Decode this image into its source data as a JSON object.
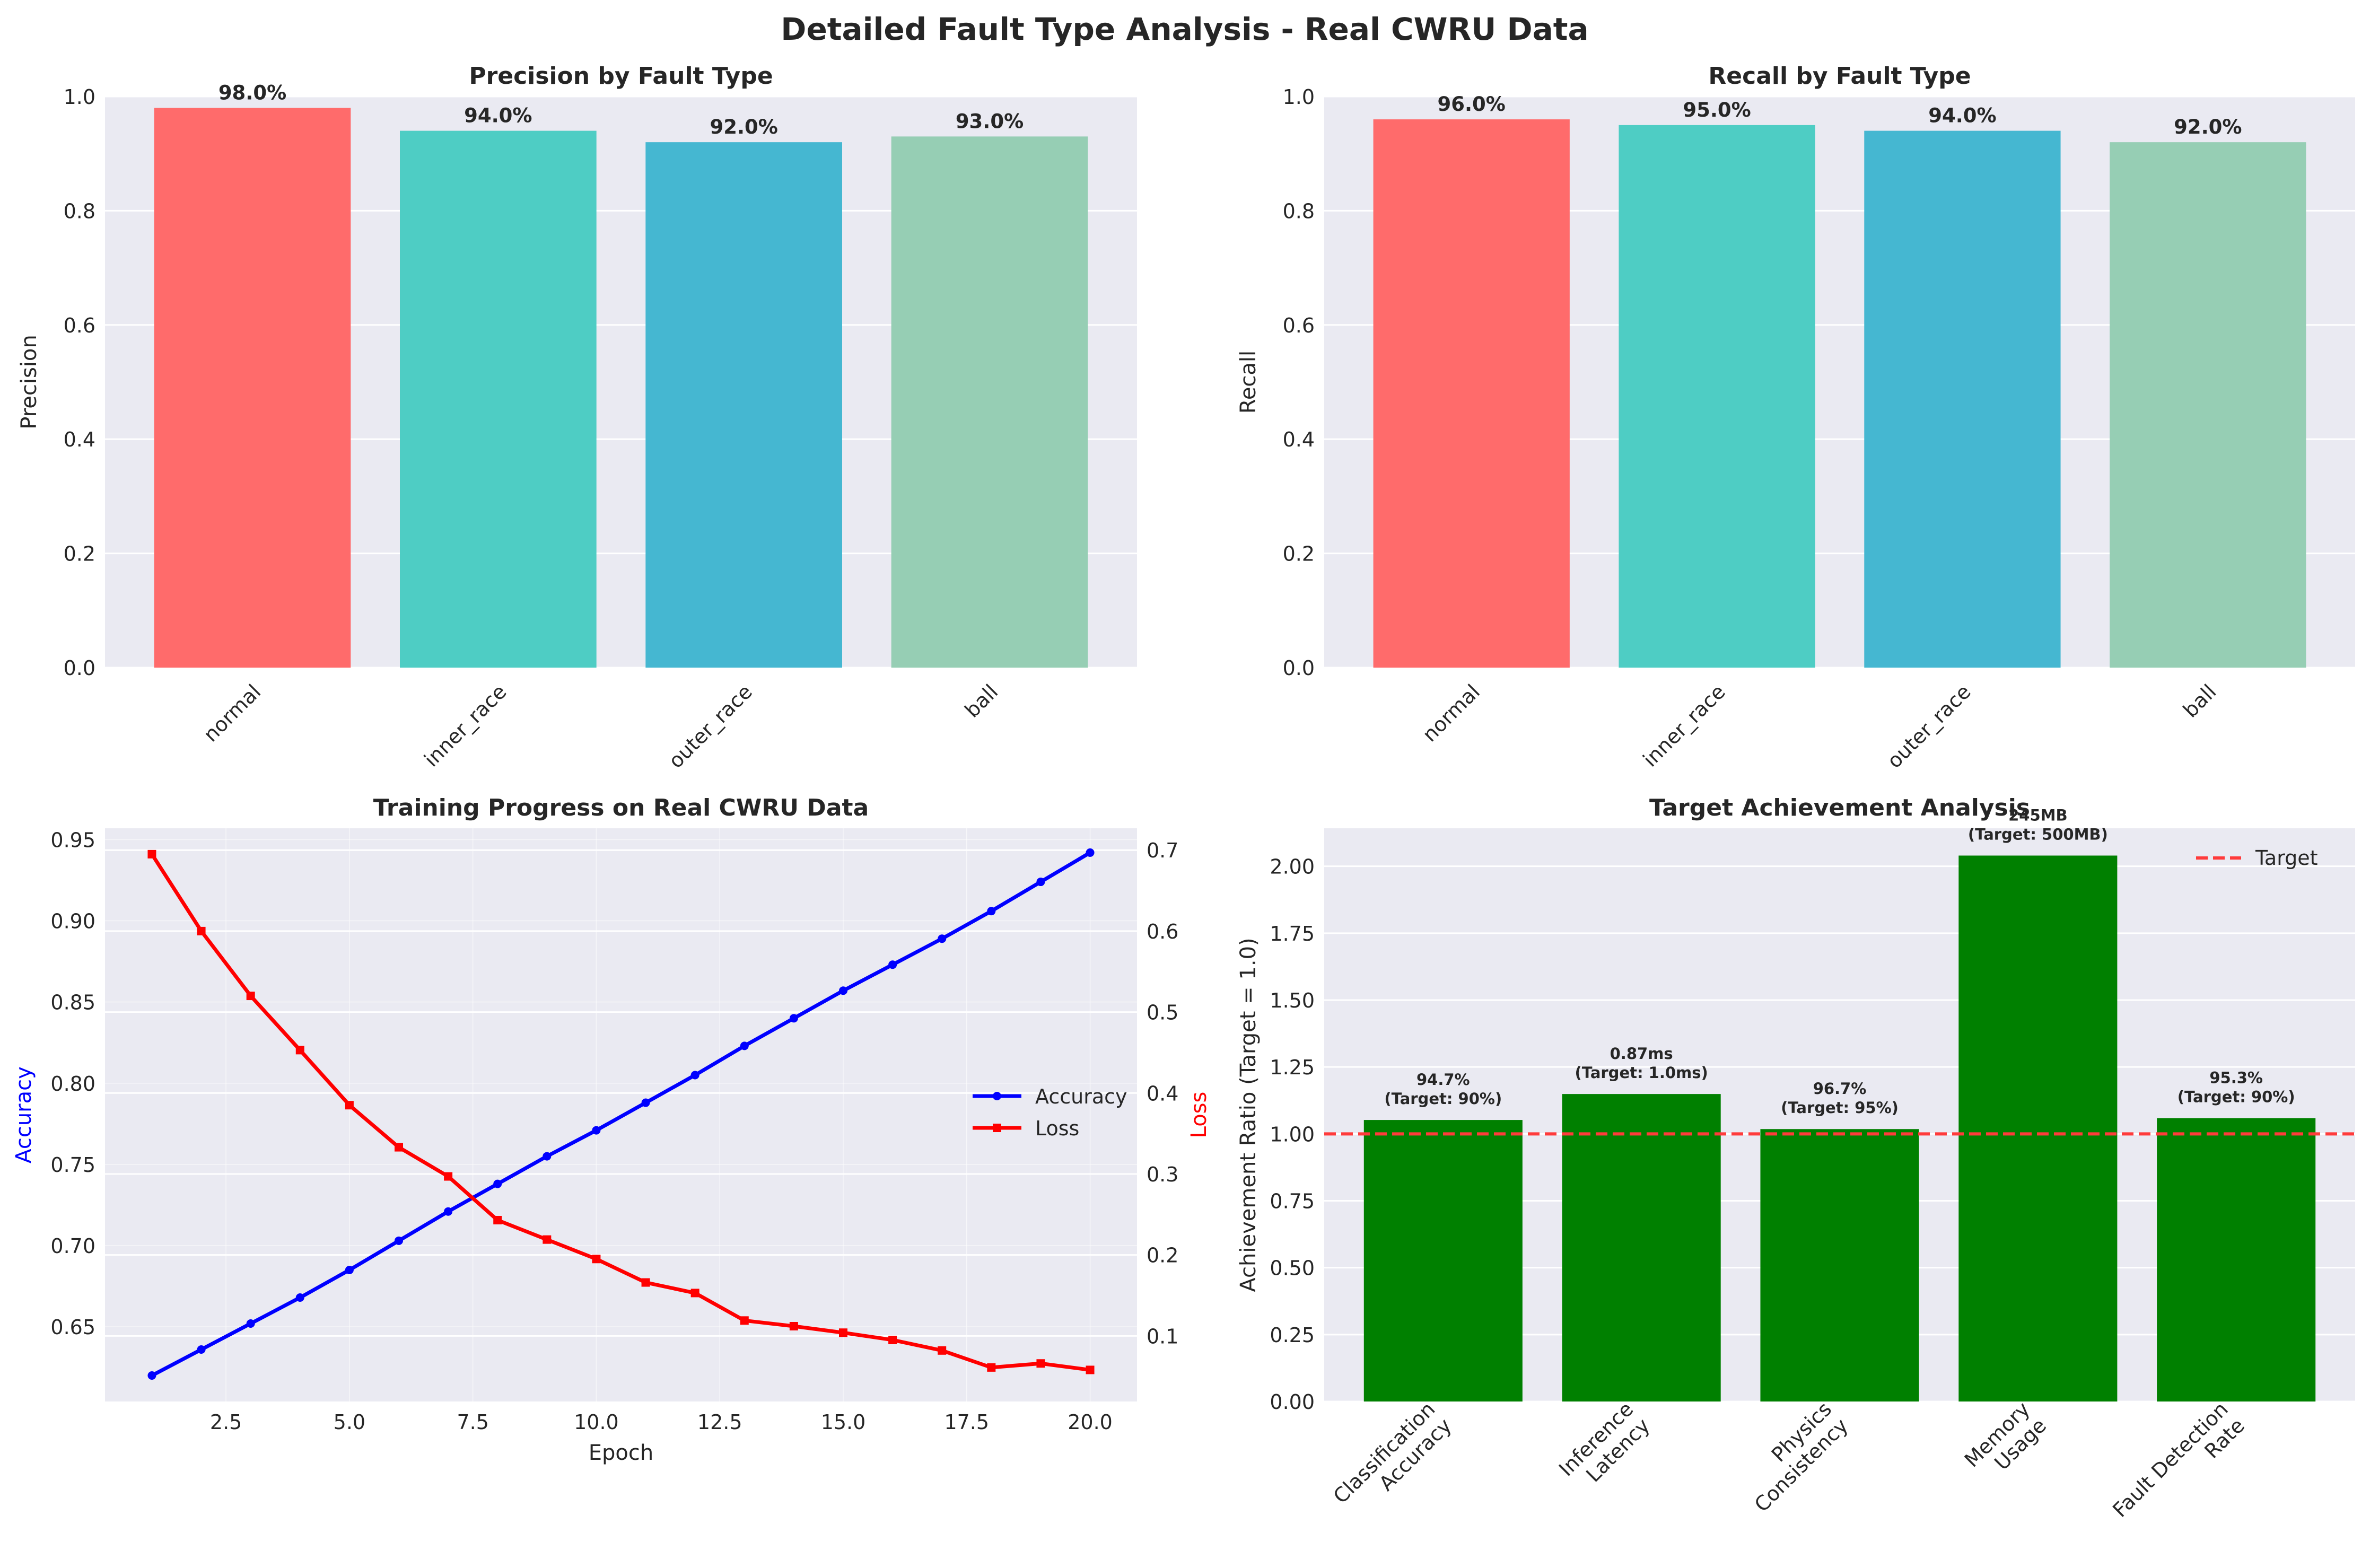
{
  "suptitle": "Detailed Fault Type Analysis - Real CWRU Data",
  "colors": {
    "panel_bg": "#EAEAF2",
    "grid": "#FFFFFF",
    "text": "#262626",
    "fault_bars": [
      "#FF6B6B",
      "#4ECDC4",
      "#45B7D1",
      "#96CEB4"
    ],
    "accuracy": "#0000FF",
    "loss": "#FF0000",
    "achievement": "#008000",
    "target": "#FF3B3B"
  },
  "chart_data": [
    {
      "type": "bar",
      "title": "Precision by Fault Type",
      "ylabel": "Precision",
      "xlabel": "",
      "categories": [
        "normal",
        "inner_race",
        "outer_race",
        "ball"
      ],
      "values": [
        0.98,
        0.94,
        0.92,
        0.93
      ],
      "value_labels": [
        "98.0%",
        "94.0%",
        "92.0%",
        "93.0%"
      ],
      "ylim": [
        0,
        1.0
      ],
      "yticks": [
        0.0,
        0.2,
        0.4,
        0.6,
        0.8,
        1.0
      ],
      "ytick_labels": [
        "0.0",
        "0.2",
        "0.4",
        "0.6",
        "0.8",
        "1.0"
      ]
    },
    {
      "type": "bar",
      "title": "Recall by Fault Type",
      "ylabel": "Recall",
      "xlabel": "",
      "categories": [
        "normal",
        "inner_race",
        "outer_race",
        "ball"
      ],
      "values": [
        0.96,
        0.95,
        0.94,
        0.92
      ],
      "value_labels": [
        "96.0%",
        "95.0%",
        "94.0%",
        "92.0%"
      ],
      "ylim": [
        0,
        1.0
      ],
      "yticks": [
        0.0,
        0.2,
        0.4,
        0.6,
        0.8,
        1.0
      ],
      "ytick_labels": [
        "0.0",
        "0.2",
        "0.4",
        "0.6",
        "0.8",
        "1.0"
      ]
    },
    {
      "type": "line",
      "title": "Training Progress on Real CWRU Data",
      "xlabel": "Epoch",
      "ylabel": "Accuracy",
      "ylabel_right": "Loss",
      "x": [
        1,
        2,
        3,
        4,
        5,
        6,
        7,
        8,
        9,
        10,
        11,
        12,
        13,
        14,
        15,
        16,
        17,
        18,
        19,
        20
      ],
      "xlim": [
        0.05,
        20.95
      ],
      "xticks": [
        2.5,
        5.0,
        7.5,
        10.0,
        12.5,
        15.0,
        17.5,
        20.0
      ],
      "xtick_labels": [
        "2.5",
        "5.0",
        "7.5",
        "10.0",
        "12.5",
        "15.0",
        "17.5",
        "20.0"
      ],
      "ylim_left": [
        0.604,
        0.957
      ],
      "yticks_left": [
        0.65,
        0.7,
        0.75,
        0.8,
        0.85,
        0.9,
        0.95
      ],
      "ytick_labels_left": [
        "0.65",
        "0.70",
        "0.75",
        "0.80",
        "0.85",
        "0.90",
        "0.95"
      ],
      "ylim_right": [
        0.019,
        0.727
      ],
      "yticks_right": [
        0.1,
        0.2,
        0.3,
        0.4,
        0.5,
        0.6,
        0.7
      ],
      "ytick_labels_right": [
        "0.1",
        "0.2",
        "0.3",
        "0.4",
        "0.5",
        "0.6",
        "0.7"
      ],
      "series": [
        {
          "name": "Accuracy",
          "axis": "left",
          "values": [
            0.62,
            0.636,
            0.652,
            0.668,
            0.685,
            0.703,
            0.721,
            0.738,
            0.755,
            0.771,
            0.788,
            0.805,
            0.823,
            0.84,
            0.857,
            0.873,
            0.889,
            0.906,
            0.924,
            0.942
          ]
        },
        {
          "name": "Loss",
          "axis": "right",
          "values": [
            0.695,
            0.6,
            0.52,
            0.453,
            0.385,
            0.333,
            0.297,
            0.243,
            0.219,
            0.195,
            0.166,
            0.153,
            0.119,
            0.112,
            0.104,
            0.095,
            0.082,
            0.061,
            0.066,
            0.058
          ]
        }
      ],
      "legend": "center-right"
    },
    {
      "type": "bar",
      "title": "Target Achievement Analysis",
      "ylabel": "Achievement Ratio (Target = 1.0)",
      "xlabel": "",
      "categories": [
        [
          "Classification",
          "Accuracy"
        ],
        [
          "Inference",
          "Latency"
        ],
        [
          "Physics",
          "Consistency"
        ],
        [
          "Memory",
          "Usage"
        ],
        [
          "Fault Detection",
          "Rate"
        ]
      ],
      "values": [
        1.052,
        1.149,
        1.018,
        2.04,
        1.059
      ],
      "value_labels": [
        [
          "94.7%",
          "(Target: 90%)"
        ],
        [
          "0.87ms",
          "(Target: 1.0ms)"
        ],
        [
          "96.7%",
          "(Target: 95%)"
        ],
        [
          "245MB",
          "(Target: 500MB)"
        ],
        [
          "95.3%",
          "(Target: 90%)"
        ]
      ],
      "target_line": 1.0,
      "target_label": "Target",
      "ylim": [
        0,
        2.142
      ],
      "yticks": [
        0.0,
        0.25,
        0.5,
        0.75,
        1.0,
        1.25,
        1.5,
        1.75,
        2.0
      ],
      "ytick_labels": [
        "0.00",
        "0.25",
        "0.50",
        "0.75",
        "1.00",
        "1.25",
        "1.50",
        "1.75",
        "2.00"
      ],
      "legend": "top-right"
    }
  ]
}
